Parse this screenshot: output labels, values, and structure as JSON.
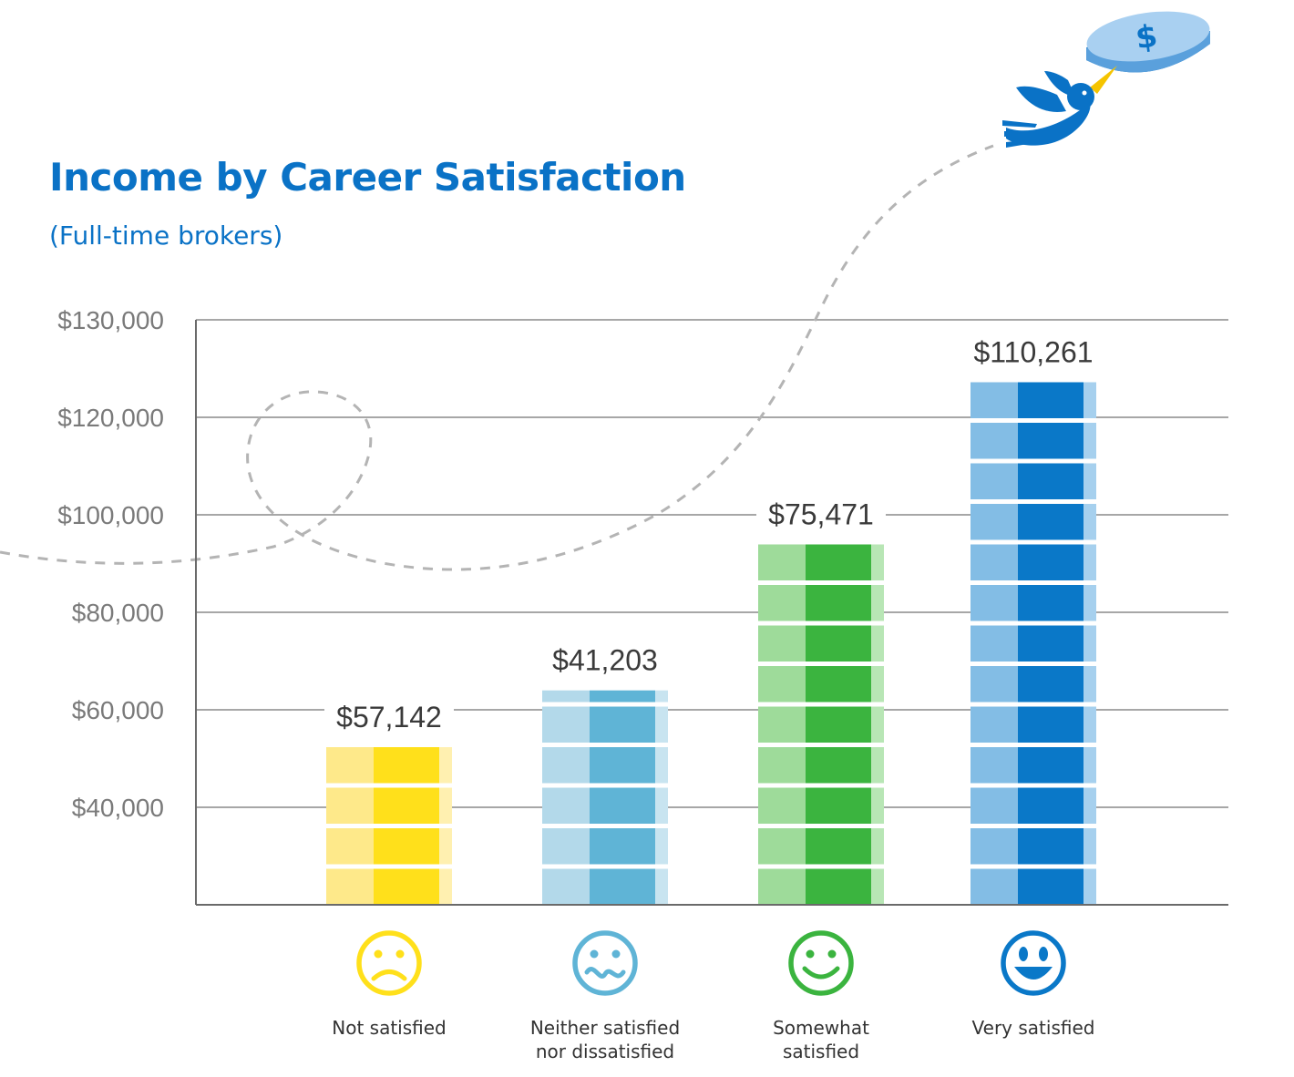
{
  "chart_data": {
    "type": "bar",
    "title": "Income by Career Satisfaction",
    "subtitle": "(Full-time brokers)",
    "ytick_labels": [
      "$130,000",
      "$120,000",
      "$100,000",
      "$80,000",
      "$60,000",
      "$40,000"
    ],
    "categories": [
      {
        "label_lines": [
          "Not satisfied"
        ],
        "value": 57142,
        "value_label": "$57,142",
        "stack_units": 4,
        "face": "sad-face-icon"
      },
      {
        "label_lines": [
          "Neither satisfied",
          "nor dissatisfied"
        ],
        "value": 41203,
        "value_label": "$41,203",
        "stack_units": 5.4,
        "face": "wavy-face-icon"
      },
      {
        "label_lines": [
          "Somewhat",
          "satisfied"
        ],
        "value": 75471,
        "value_label": "$75,471",
        "stack_units": 9,
        "face": "smile-face-icon"
      },
      {
        "label_lines": [
          "Very satisfied"
        ],
        "value": 110261,
        "value_label": "$110,261",
        "stack_units": 13,
        "face": "grin-face-icon"
      }
    ],
    "grid": true,
    "colors": {
      "title": "#0a72c6",
      "not_satisfied": [
        "#fee98a",
        "#ffe01b",
        "#fff0b0"
      ],
      "neither": [
        "#b3d9ea",
        "#5fb4d6",
        "#c8e4f0"
      ],
      "somewhat": [
        "#9edb9a",
        "#3bb43f",
        "#b8e6b5"
      ],
      "very": [
        "#83bde5",
        "#0a78c8",
        "#a6d0ee"
      ],
      "coin_top": "#a9d0f1",
      "coin_side": "#0a72c6",
      "bird": "#0a72c6",
      "beak": "#f5c400"
    }
  }
}
